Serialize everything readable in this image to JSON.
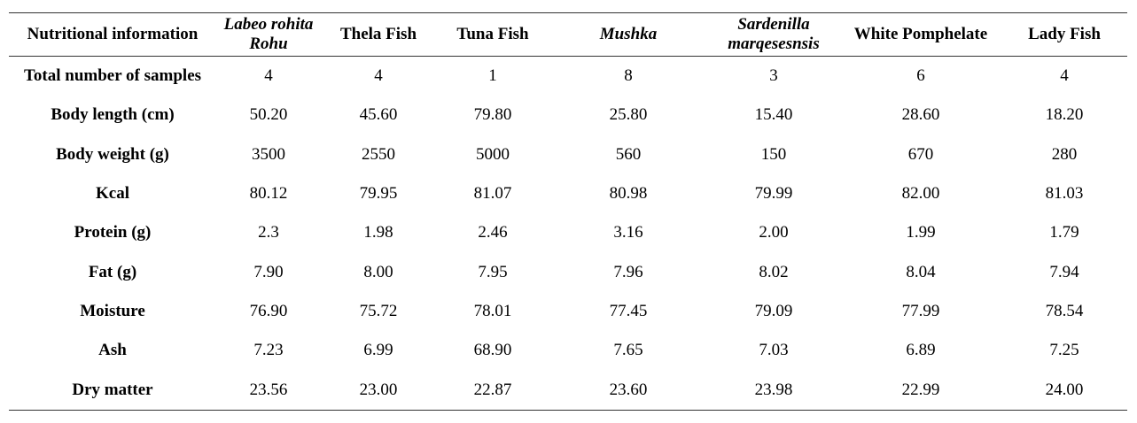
{
  "table": {
    "headers": [
      {
        "text": "Nutritional information",
        "italic": false
      },
      {
        "text": "Labeo rohita Rohu",
        "italic": true
      },
      {
        "text": "Thela Fish",
        "italic": false
      },
      {
        "text": "Tuna Fish",
        "italic": false
      },
      {
        "text": "Mushka",
        "italic": true
      },
      {
        "text": "Sardenilla marqesesnsis",
        "italic": true
      },
      {
        "text": "White Pomphelate",
        "italic": false
      },
      {
        "text": "Lady Fish",
        "italic": false
      }
    ],
    "rows": [
      {
        "label": "Total number of samples",
        "values": [
          "4",
          "4",
          "1",
          "8",
          "3",
          "6",
          "4"
        ]
      },
      {
        "label": "Body length (cm)",
        "values": [
          "50.20",
          "45.60",
          "79.80",
          "25.80",
          "15.40",
          "28.60",
          "18.20"
        ]
      },
      {
        "label": "Body weight (g)",
        "values": [
          "3500",
          "2550",
          "5000",
          "560",
          "150",
          "670",
          "280"
        ]
      },
      {
        "label": "Kcal",
        "values": [
          "80.12",
          "79.95",
          "81.07",
          "80.98",
          "79.99",
          "82.00",
          "81.03"
        ]
      },
      {
        "label": "Protein (g)",
        "values": [
          "2.3",
          "1.98",
          "2.46",
          "3.16",
          "2.00",
          "1.99",
          "1.79"
        ]
      },
      {
        "label": "Fat (g)",
        "values": [
          "7.90",
          "8.00",
          "7.95",
          "7.96",
          "8.02",
          "8.04",
          "7.94"
        ]
      },
      {
        "label": "Moisture",
        "values": [
          "76.90",
          "75.72",
          "78.01",
          "77.45",
          "79.09",
          "77.99",
          "78.54"
        ]
      },
      {
        "label": "Ash",
        "values": [
          "7.23",
          "6.99",
          "68.90",
          "7.65",
          "7.03",
          "6.89",
          "7.25"
        ]
      },
      {
        "label": "Dry matter",
        "values": [
          "23.56",
          "23.00",
          "22.87",
          "23.60",
          "23.98",
          "22.99",
          "24.00"
        ]
      }
    ]
  }
}
